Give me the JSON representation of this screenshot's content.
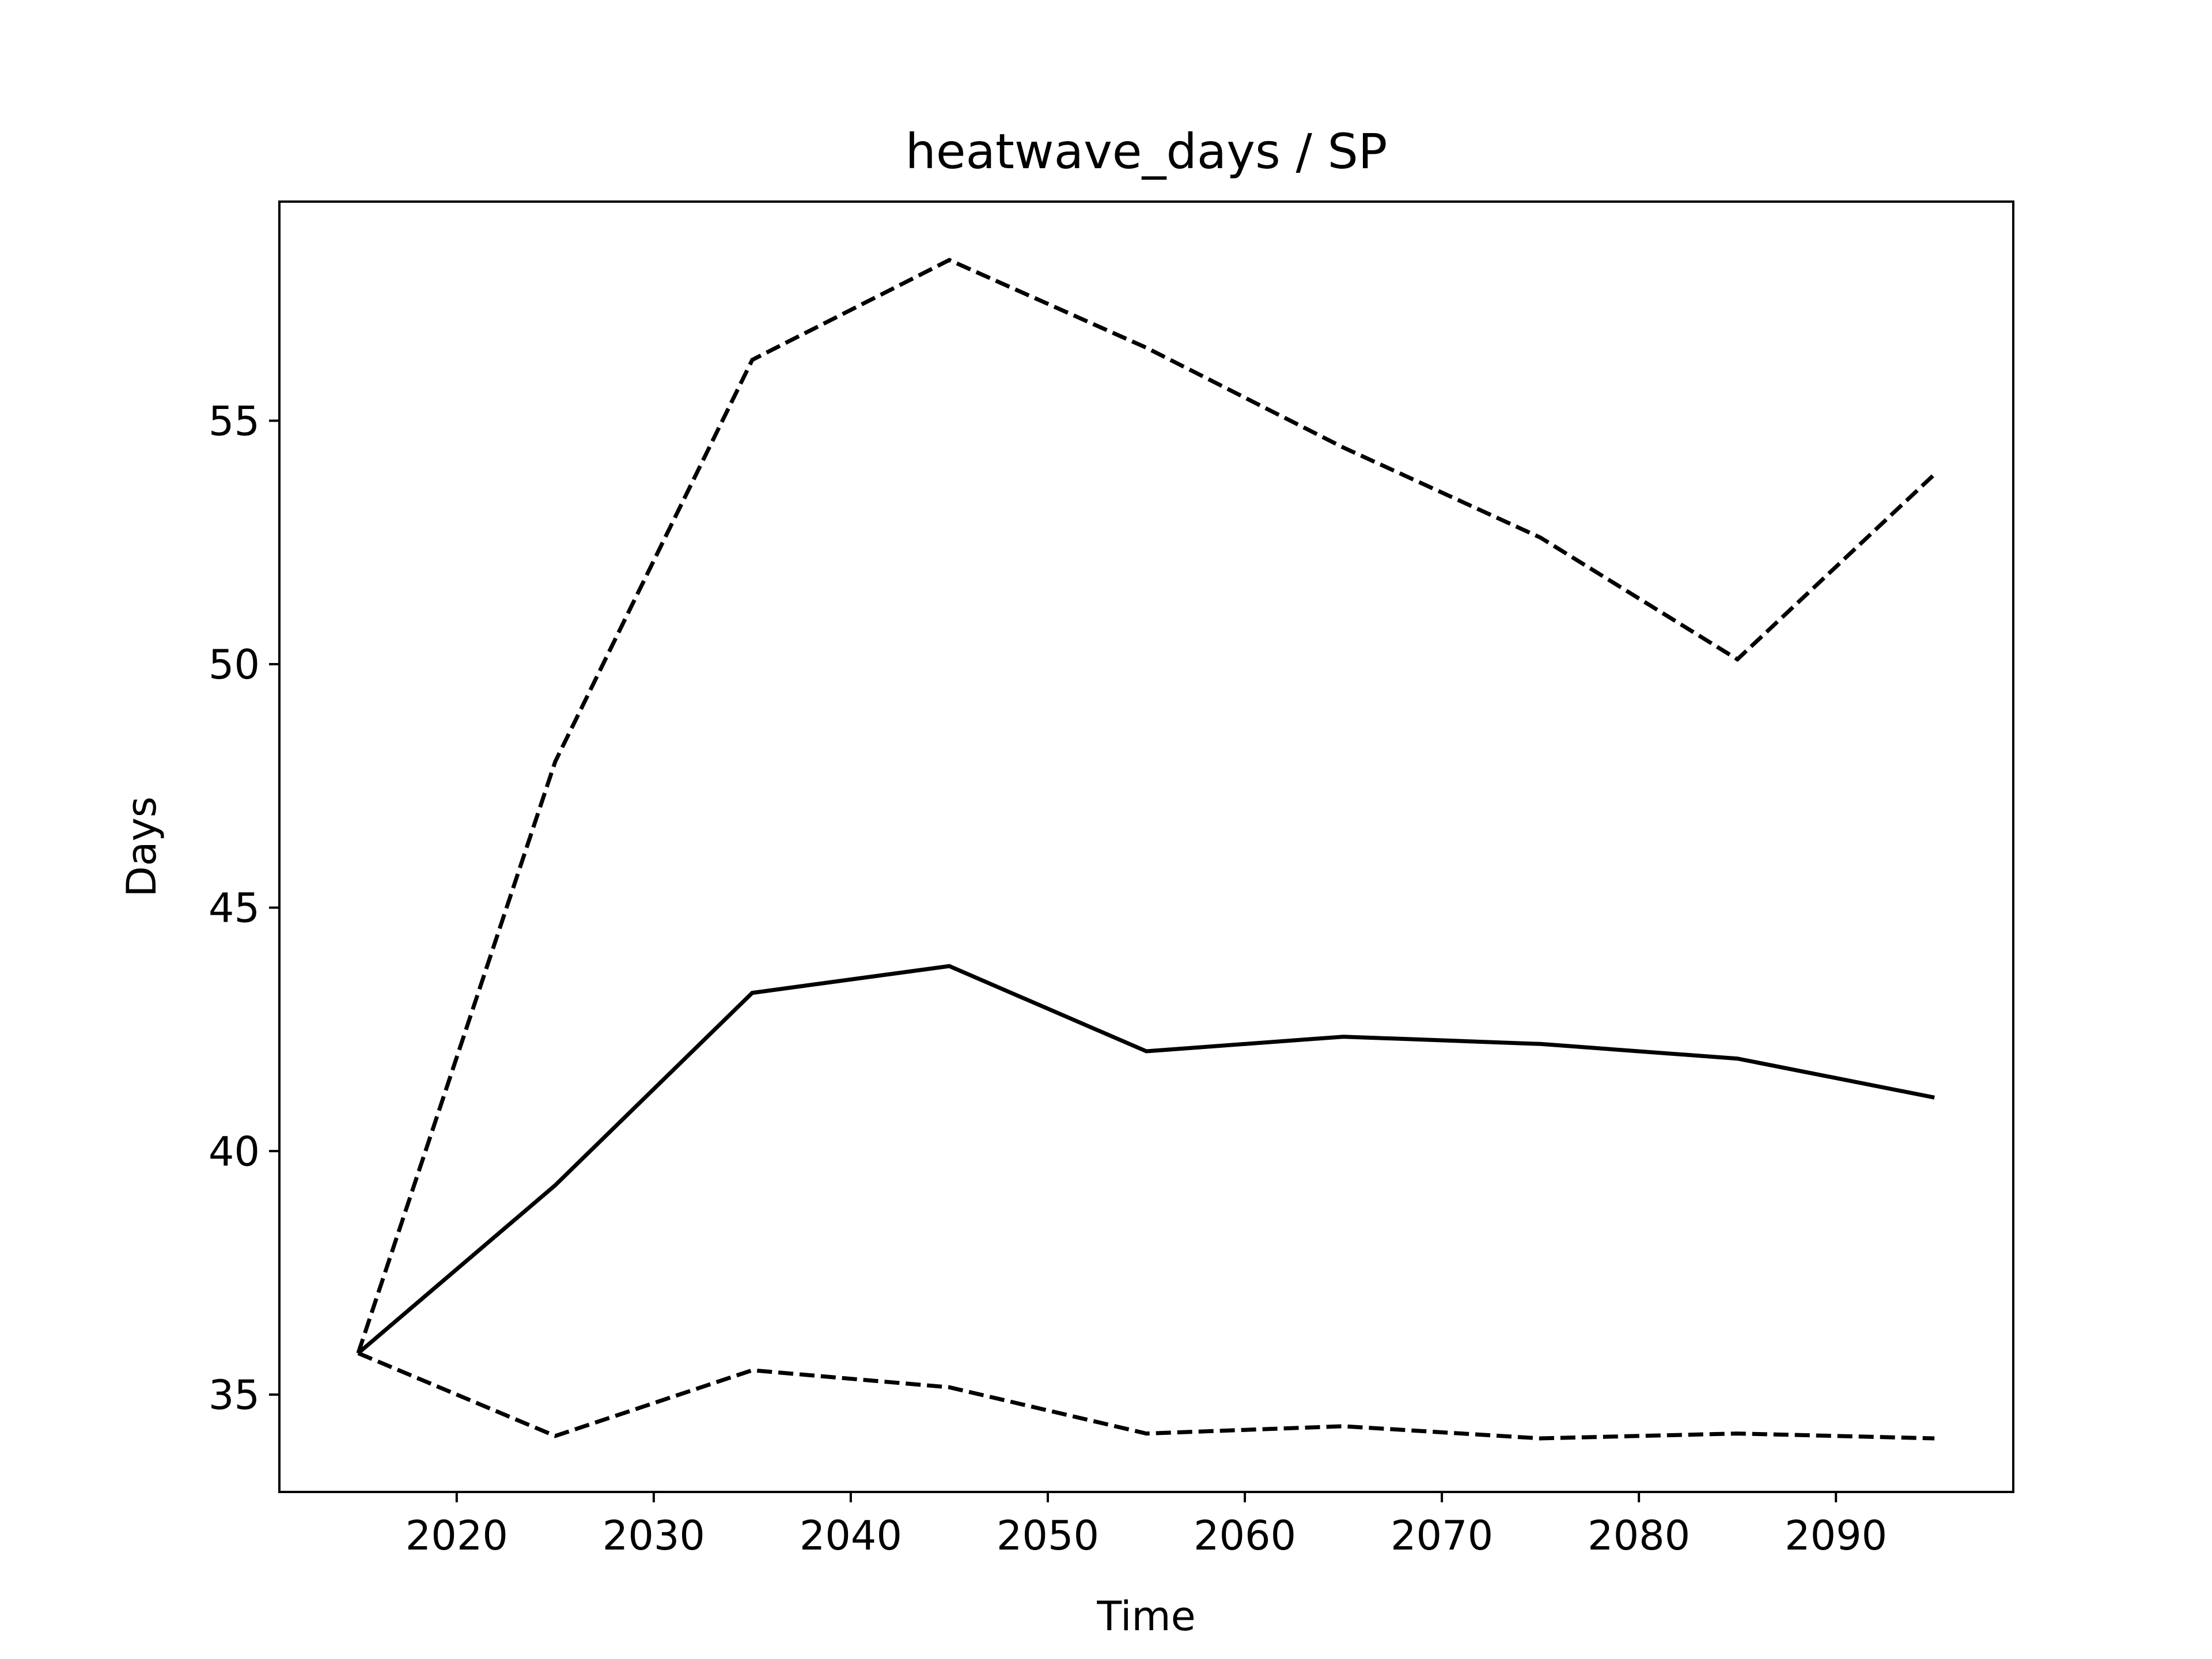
{
  "chart_data": {
    "type": "line",
    "title": "heatwave_days / SP",
    "xlabel": "Time",
    "ylabel": "Days",
    "xlim": [
      2011,
      2099
    ],
    "ylim": [
      33,
      59.5
    ],
    "xticks": [
      2020,
      2030,
      2040,
      2050,
      2060,
      2070,
      2080,
      2090
    ],
    "yticks": [
      35,
      40,
      45,
      50,
      55
    ],
    "grid": false,
    "legend": "none",
    "x": [
      2015,
      2025,
      2035,
      2045,
      2055,
      2065,
      2075,
      2085,
      2095
    ],
    "series": [
      {
        "style": "dashed",
        "color": "#000000",
        "values": [
          35.85,
          48.0,
          56.25,
          58.3,
          56.5,
          54.45,
          52.6,
          50.1,
          53.9
        ]
      },
      {
        "style": "solid",
        "color": "#000000",
        "values": [
          35.85,
          39.3,
          43.25,
          43.8,
          42.05,
          42.35,
          42.2,
          41.9,
          41.1
        ]
      },
      {
        "style": "dashed",
        "color": "#000000",
        "values": [
          35.85,
          34.15,
          35.5,
          35.15,
          34.2,
          34.35,
          34.1,
          34.2,
          34.1
        ]
      }
    ]
  }
}
